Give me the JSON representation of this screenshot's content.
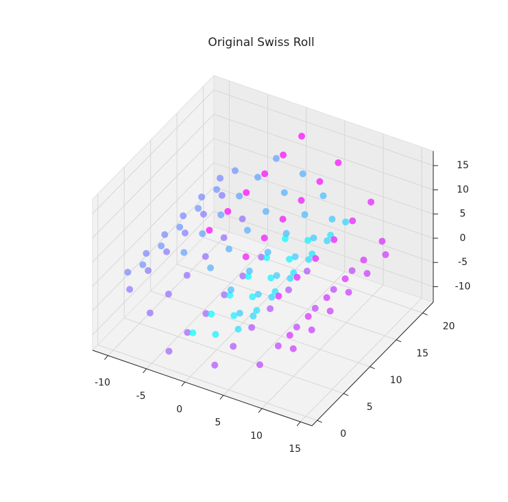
{
  "chart_data": {
    "type": "scatter3d",
    "title": "Original Swiss Roll",
    "colormap": "cool",
    "xlim": [
      -12,
      16.5
    ],
    "ylim": [
      -1,
      22
    ],
    "zlim": [
      -13.2,
      18
    ],
    "xticks": [
      -10,
      -5,
      0,
      5,
      10,
      15
    ],
    "yticks": [
      0,
      5,
      10,
      15,
      20
    ],
    "zticks": [
      -10,
      -5,
      0,
      5,
      10,
      15
    ],
    "grid": true,
    "series": [
      {
        "x": [
          0.0,
          0.0,
          0.0,
          0.0,
          0.0,
          0.0,
          2.4,
          2.4,
          2.4,
          2.4,
          2.4,
          2.4,
          4.8,
          4.8,
          4.8,
          4.8,
          4.8,
          4.8,
          6.2,
          6.2,
          6.2,
          6.2,
          6.2,
          6.2,
          6.1,
          6.1,
          6.1,
          6.1,
          6.1,
          6.1,
          4.4,
          4.4,
          4.4,
          4.4,
          4.4,
          4.4,
          1.2,
          1.2,
          1.2,
          1.2,
          1.2,
          1.2,
          -2.8,
          -2.8,
          -2.8,
          -2.8,
          -2.8,
          -2.8,
          -6.5,
          -6.5,
          -6.5,
          -6.5,
          -6.5,
          -6.5,
          -9.0,
          -9.0,
          -9.0,
          -9.0,
          -9.0,
          -9.0,
          -9.3,
          -9.3,
          -9.3,
          -9.3,
          -9.3,
          -9.3,
          -7.2,
          -7.2,
          -7.2,
          -7.2,
          -7.2,
          -7.2,
          -3.1,
          -3.1,
          -3.1,
          -3.1,
          -3.1,
          -3.1,
          2.3,
          2.3,
          2.3,
          2.3,
          2.3,
          2.3,
          7.6,
          7.6,
          7.6,
          7.6,
          7.6,
          7.6,
          11.4,
          11.4,
          11.4,
          11.4,
          11.4,
          11.4,
          12.6,
          12.6,
          12.6,
          12.6,
          12.6,
          12.6,
          10.6,
          10.6,
          10.6,
          10.6,
          10.6,
          10.6,
          5.8,
          5.8,
          5.8,
          5.8,
          5.8,
          5.8,
          0.5,
          0.5,
          0.5,
          0.5,
          0.5,
          0.5
        ],
        "y": [
          0.5,
          4,
          7.5,
          11,
          14.5,
          18,
          1.3,
          4.8,
          8.3,
          11.8,
          15.3,
          18.8,
          2.1,
          5.6,
          9.1,
          12.6,
          16.1,
          19.6,
          2.9,
          6.4,
          9.9,
          13.4,
          16.9,
          20.4,
          0.5,
          4,
          7.5,
          11,
          14.5,
          18,
          1.3,
          4.8,
          8.3,
          11.8,
          15.3,
          18.8,
          2.1,
          5.6,
          9.1,
          12.6,
          16.1,
          19.6,
          2.9,
          6.4,
          9.9,
          13.4,
          16.9,
          20.4,
          0.5,
          4,
          7.5,
          11,
          14.5,
          18,
          1.3,
          4.8,
          8.3,
          11.8,
          15.3,
          18.8,
          2.1,
          5.6,
          9.1,
          12.6,
          16.1,
          19.6,
          2.9,
          6.4,
          9.9,
          13.4,
          16.9,
          20.4,
          0.5,
          4,
          7.5,
          11,
          14.5,
          18,
          1.3,
          4.8,
          8.3,
          11.8,
          15.3,
          18.8,
          2.1,
          5.6,
          9.1,
          12.6,
          16.1,
          19.6,
          2.9,
          6.4,
          9.9,
          13.4,
          16.9,
          20.4,
          0.5,
          4,
          7.5,
          11,
          14.5,
          18,
          1.3,
          4.8,
          8.3,
          11.8,
          15.3,
          18.8,
          2.1,
          5.6,
          9.1,
          12.6,
          16.1,
          19.6,
          2.9,
          6.4,
          9.9,
          13.4,
          16.9,
          20.4
        ],
        "z": [
          -4.7,
          -4.7,
          -4.7,
          -4.7,
          -4.7,
          -4.7,
          -4.6,
          -4.6,
          -4.6,
          -4.6,
          -4.6,
          -4.6,
          -3.1,
          -3.1,
          -3.1,
          -3.1,
          -3.1,
          -3.1,
          -0.5,
          -0.5,
          -0.5,
          -0.5,
          -0.5,
          -0.5,
          2.7,
          2.7,
          2.7,
          2.7,
          2.7,
          2.7,
          5.7,
          5.7,
          5.7,
          5.7,
          5.7,
          5.7,
          7.6,
          7.6,
          7.6,
          7.6,
          7.6,
          7.6,
          7.7,
          7.7,
          7.7,
          7.7,
          7.7,
          7.7,
          5.8,
          5.8,
          5.8,
          5.8,
          5.8,
          5.8,
          2.0,
          2.0,
          2.0,
          2.0,
          2.0,
          2.0,
          -2.6,
          -2.6,
          -2.6,
          -2.6,
          -2.6,
          -2.6,
          -7.2,
          -7.2,
          -7.2,
          -7.2,
          -7.2,
          -7.2,
          -10.2,
          -10.2,
          -10.2,
          -10.2,
          -10.2,
          -10.2,
          -11.0,
          -11.0,
          -11.0,
          -11.0,
          -11.0,
          -11.0,
          -8.9,
          -8.9,
          -8.9,
          -8.9,
          -8.9,
          -8.9,
          -4.4,
          -4.4,
          -4.4,
          -4.4,
          -4.4,
          -4.4,
          1.7,
          1.7,
          1.7,
          1.7,
          1.7,
          1.7,
          7.8,
          7.8,
          7.8,
          7.8,
          7.8,
          7.8,
          12.4,
          12.4,
          12.4,
          12.4,
          12.4,
          12.4,
          14.1,
          14.1,
          14.1,
          14.1,
          14.1,
          14.1
        ],
        "c": [
          4.71,
          4.71,
          4.71,
          4.71,
          4.71,
          4.71,
          5.2,
          5.2,
          5.2,
          5.2,
          5.2,
          5.2,
          5.7,
          5.7,
          5.7,
          5.7,
          5.7,
          5.7,
          6.2,
          6.2,
          6.2,
          6.2,
          6.2,
          6.2,
          6.7,
          6.7,
          6.7,
          6.7,
          6.7,
          6.7,
          7.2,
          7.2,
          7.2,
          7.2,
          7.2,
          7.2,
          7.7,
          7.7,
          7.7,
          7.7,
          7.7,
          7.7,
          8.2,
          8.2,
          8.2,
          8.2,
          8.2,
          8.2,
          8.7,
          8.7,
          8.7,
          8.7,
          8.7,
          8.7,
          9.2,
          9.2,
          9.2,
          9.2,
          9.2,
          9.2,
          9.7,
          9.7,
          9.7,
          9.7,
          9.7,
          9.7,
          10.2,
          10.2,
          10.2,
          10.2,
          10.2,
          10.2,
          10.7,
          10.7,
          10.7,
          10.7,
          10.7,
          10.7,
          11.2,
          11.2,
          11.2,
          11.2,
          11.2,
          11.2,
          11.7,
          11.7,
          11.7,
          11.7,
          11.7,
          11.7,
          12.2,
          12.2,
          12.2,
          12.2,
          12.2,
          12.2,
          12.7,
          12.7,
          12.7,
          12.7,
          12.7,
          12.7,
          13.2,
          13.2,
          13.2,
          13.2,
          13.2,
          13.2,
          13.7,
          13.7,
          13.7,
          13.7,
          13.7,
          13.7,
          14.1,
          14.1,
          14.1,
          14.1,
          14.1,
          14.1
        ]
      }
    ]
  }
}
